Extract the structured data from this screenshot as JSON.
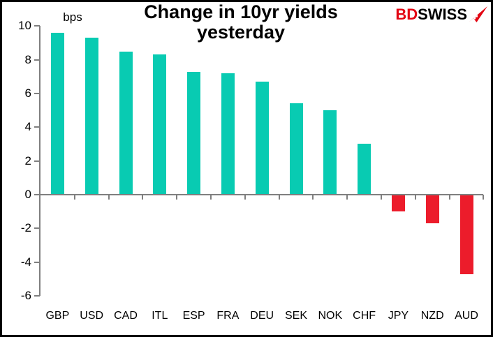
{
  "header": {
    "title_line1": "Change in 10yr yields",
    "title_line2": "yesterday",
    "logo": {
      "text_red": "BD",
      "text_black": "SWISS",
      "icon": "arrow-up-right-swiss-cross-icon",
      "red": "#E30613"
    }
  },
  "chart_data": {
    "type": "bar",
    "title": "Change in 10yr yields yesterday",
    "unit": "bps",
    "xlabel": "",
    "ylabel": "bps",
    "categories": [
      "GBP",
      "USD",
      "CAD",
      "ITL",
      "ESP",
      "FRA",
      "DEU",
      "SEK",
      "NOK",
      "CHF",
      "JPY",
      "NZD",
      "AUD"
    ],
    "values": [
      9.6,
      9.3,
      8.5,
      8.3,
      7.3,
      7.2,
      6.7,
      5.4,
      5.0,
      3.0,
      -1.0,
      -1.7,
      -4.7
    ],
    "positive_color": "#08CBB2",
    "negative_color": "#EC1C2B",
    "axis_color": "#7F7F7F",
    "ylim": [
      -6,
      10
    ],
    "yticks": [
      10,
      8,
      6,
      4,
      2,
      0,
      -2,
      -4,
      -6
    ],
    "grid": false,
    "legend": "none"
  }
}
